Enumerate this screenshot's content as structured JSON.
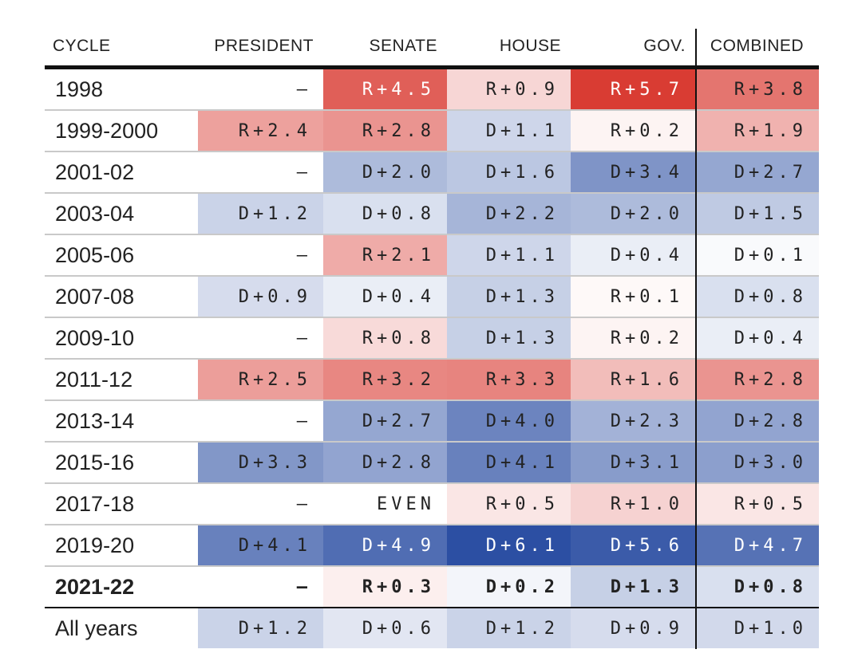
{
  "chart_data": {
    "type": "table",
    "columns": [
      "CYCLE",
      "PRESIDENT",
      "SENATE",
      "HOUSE",
      "GOV.",
      "COMBINED"
    ],
    "rows": [
      {
        "cycle": "1998",
        "cells": [
          "–",
          "R+4.5",
          "R+0.9",
          "R+5.7",
          "R+3.8"
        ]
      },
      {
        "cycle": "1999-2000",
        "cells": [
          "R+2.4",
          "R+2.8",
          "D+1.1",
          "R+0.2",
          "R+1.9"
        ]
      },
      {
        "cycle": "2001-02",
        "cells": [
          "–",
          "D+2.0",
          "D+1.6",
          "D+3.4",
          "D+2.7"
        ]
      },
      {
        "cycle": "2003-04",
        "cells": [
          "D+1.2",
          "D+0.8",
          "D+2.2",
          "D+2.0",
          "D+1.5"
        ]
      },
      {
        "cycle": "2005-06",
        "cells": [
          "–",
          "R+2.1",
          "D+1.1",
          "D+0.4",
          "D+0.1"
        ]
      },
      {
        "cycle": "2007-08",
        "cells": [
          "D+0.9",
          "D+0.4",
          "D+1.3",
          "R+0.1",
          "D+0.8"
        ]
      },
      {
        "cycle": "2009-10",
        "cells": [
          "–",
          "R+0.8",
          "D+1.3",
          "R+0.2",
          "D+0.4"
        ]
      },
      {
        "cycle": "2011-12",
        "cells": [
          "R+2.5",
          "R+3.2",
          "R+3.3",
          "R+1.6",
          "R+2.8"
        ]
      },
      {
        "cycle": "2013-14",
        "cells": [
          "–",
          "D+2.7",
          "D+4.0",
          "D+2.3",
          "D+2.8"
        ]
      },
      {
        "cycle": "2015-16",
        "cells": [
          "D+3.3",
          "D+2.8",
          "D+4.1",
          "D+3.1",
          "D+3.0"
        ]
      },
      {
        "cycle": "2017-18",
        "cells": [
          "–",
          "EVEN",
          "R+0.5",
          "R+1.0",
          "R+0.5"
        ]
      },
      {
        "cycle": "2019-20",
        "cells": [
          "D+4.1",
          "D+4.9",
          "D+6.1",
          "D+5.6",
          "D+4.7"
        ]
      },
      {
        "cycle": "2021-22",
        "bold": true,
        "cells": [
          "–",
          "R+0.3",
          "D+0.2",
          "D+1.3",
          "D+0.8"
        ]
      },
      {
        "cycle": "All years",
        "cells": [
          "D+1.2",
          "D+0.6",
          "D+1.2",
          "D+0.9",
          "D+1.0"
        ]
      }
    ],
    "colors": {
      "republican": "#d73027",
      "democrat": "#2c4fa3",
      "neutral": "#ffffff",
      "max_abs_value": 6.1
    }
  }
}
